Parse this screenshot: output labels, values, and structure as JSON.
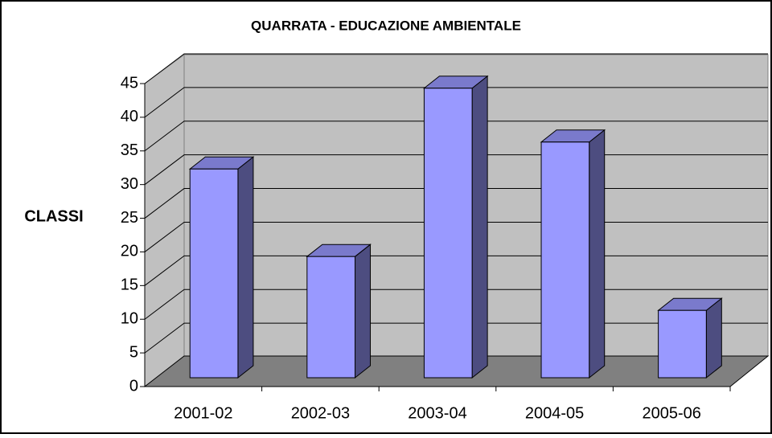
{
  "chart_data": {
    "type": "bar3d",
    "title": "QUARRATA - EDUCAZIONE AMBIENTALE",
    "y_label": "CLASSI",
    "categories": [
      "2001-02",
      "2002-03",
      "2003-04",
      "2004-05",
      "2005-06"
    ],
    "values": [
      31,
      18,
      43,
      35,
      10
    ],
    "color": "#9999ff",
    "ylim": [
      0,
      45
    ],
    "yticks": [
      0,
      5,
      10,
      15,
      20,
      25,
      30,
      35,
      40,
      45
    ],
    "grid": true
  }
}
